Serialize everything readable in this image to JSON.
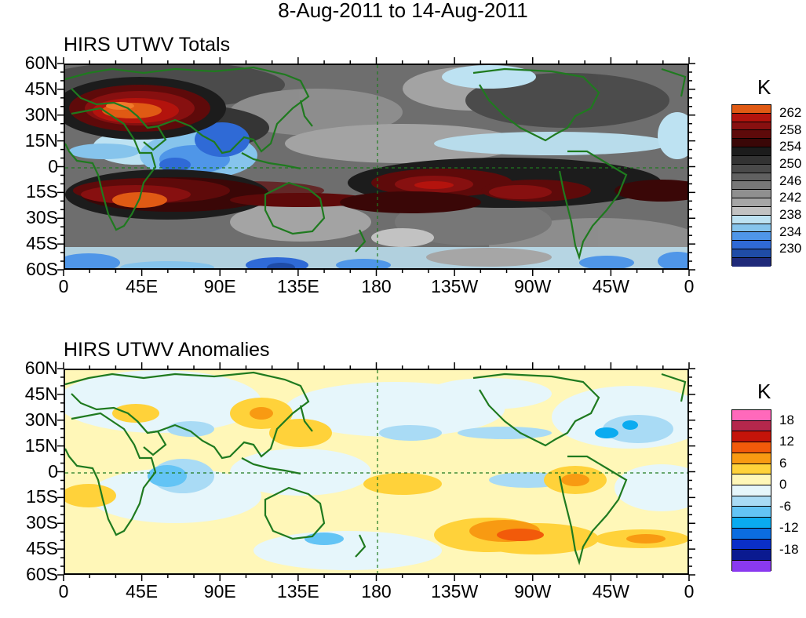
{
  "title": "8-Aug-2011 to 14-Aug-2011",
  "lat_labels": [
    "60N",
    "45N",
    "30N",
    "15N",
    "0",
    "15S",
    "30S",
    "45S",
    "60S"
  ],
  "lon_labels": [
    "0",
    "45E",
    "90E",
    "135E",
    "180",
    "135W",
    "90W",
    "45W",
    "0"
  ],
  "panels": [
    {
      "title": "HIRS UTWV Totals",
      "unit": "K",
      "colorbar_colors": [
        "#e05a14",
        "#b3130d",
        "#871010",
        "#5e0a0a",
        "#3a0707",
        "#1c1c1c",
        "#333333",
        "#4a4a4a",
        "#616161",
        "#787878",
        "#8f8f8f",
        "#a6a6a6",
        "#c2c2c2",
        "#bde2f2",
        "#86c4ec",
        "#4f96e8",
        "#2f6ad6",
        "#1f4ca6",
        "#1f2a7a"
      ],
      "colorbar_labels": [
        "262",
        "258",
        "254",
        "250",
        "246",
        "242",
        "238",
        "234",
        "230"
      ]
    },
    {
      "title": "HIRS UTWV Anomalies",
      "unit": "K",
      "colorbar_colors": [
        "#ff69bb",
        "#b4274c",
        "#c4140a",
        "#f25a0a",
        "#f89a12",
        "#ffd23a",
        "#fff7b8",
        "#e6f6fb",
        "#a9dbf5",
        "#63c4f5",
        "#0aabf0",
        "#0b6de0",
        "#0a2fc8",
        "#0a1a90",
        "#8a39f0"
      ],
      "colorbar_labels": [
        "18",
        "12",
        "6",
        "0",
        "-6",
        "-12",
        "-18"
      ]
    }
  ]
}
